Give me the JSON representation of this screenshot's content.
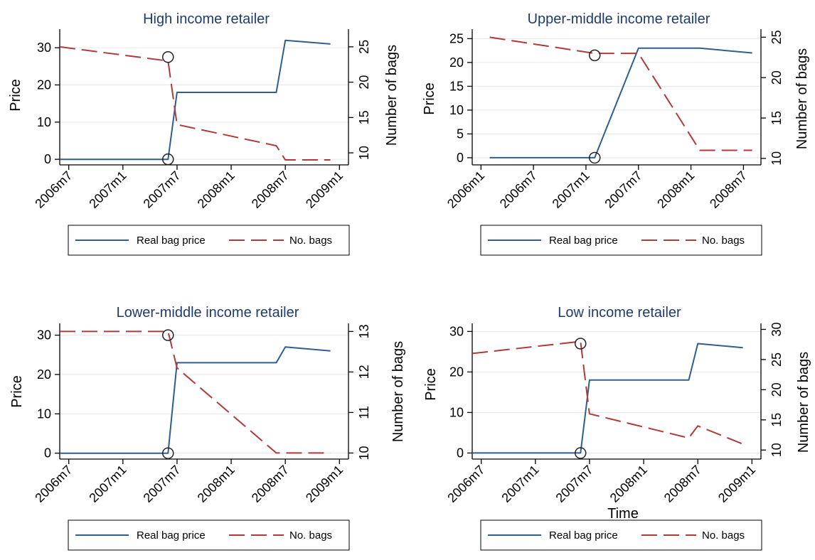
{
  "colors": {
    "price": "#2e5f8e",
    "bags": "#b03a3a",
    "title": "#1f3a6e",
    "grid": "#e6e6e6"
  },
  "chart_data": [
    {
      "type": "line",
      "title": "High income retailer",
      "ylabel": "Price",
      "y2label": "Number of bags",
      "xlabel": "",
      "x_tick_labels": [
        "2006m7",
        "2007m1",
        "2007m7",
        "2008m1",
        "2008m7",
        "2009m1"
      ],
      "x_tick_months": [
        0,
        6,
        12,
        18,
        24,
        30
      ],
      "xlim_months": [
        -1,
        31
      ],
      "ylim": [
        -1.5,
        35
      ],
      "y_ticks": [
        0,
        10,
        20,
        30
      ],
      "y2lim": [
        8.3,
        27.5
      ],
      "y2_ticks": [
        10,
        15,
        20,
        25
      ],
      "grid": true,
      "legend": [
        "Real bag price",
        "No. bags"
      ],
      "legend_position": "bottom",
      "series": [
        {
          "name": "Real bag price",
          "axis": "left",
          "style": "solid",
          "x": [
            "2006m6",
            "2007m6",
            "2007m7",
            "2008m6",
            "2008m7",
            "2008m12"
          ],
          "values": [
            0,
            0,
            18,
            18,
            32,
            31
          ]
        },
        {
          "name": "No. bags",
          "axis": "right",
          "style": "dashed",
          "x": [
            "2006m6",
            "2007m6",
            "2007m7",
            "2008m6",
            "2008m7",
            "2008m12"
          ],
          "values": [
            25,
            23,
            14,
            11,
            9,
            9
          ]
        }
      ],
      "markers": [
        {
          "x": "2007m6",
          "y": 27.5,
          "axis": "left"
        },
        {
          "x": "2007m6",
          "y": 0,
          "axis": "left"
        }
      ]
    },
    {
      "type": "line",
      "title": "Upper-middle income retailer",
      "ylabel": "Price",
      "y2label": "Number of bags",
      "xlabel": "",
      "x_tick_labels": [
        "2006m1",
        "2006m7",
        "2007m1",
        "2007m7",
        "2008m1",
        "2008m7"
      ],
      "x_tick_months": [
        -6,
        0,
        6,
        12,
        18,
        24
      ],
      "xlim_months": [
        -7,
        26
      ],
      "ylim": [
        -1.5,
        27
      ],
      "y_ticks": [
        0,
        5,
        10,
        15,
        20,
        25
      ],
      "y2lim": [
        9.2,
        26
      ],
      "y2_ticks": [
        10,
        15,
        20,
        25
      ],
      "grid": true,
      "legend": [
        "Real bag price",
        "No. bags"
      ],
      "legend_position": "bottom",
      "series": [
        {
          "name": "Real bag price",
          "axis": "left",
          "style": "solid",
          "x": [
            "2006m2",
            "2007m2",
            "2007m7",
            "2008m2",
            "2008m8"
          ],
          "values": [
            0,
            0,
            23,
            23,
            22
          ]
        },
        {
          "name": "No. bags",
          "axis": "right",
          "style": "dashed",
          "x": [
            "2006m2",
            "2007m2",
            "2007m7",
            "2008m2",
            "2008m8"
          ],
          "values": [
            25,
            23,
            23,
            11,
            11
          ]
        }
      ],
      "markers": [
        {
          "x": "2007m2",
          "y": 21.5,
          "axis": "left"
        },
        {
          "x": "2007m2",
          "y": 0,
          "axis": "left"
        }
      ]
    },
    {
      "type": "line",
      "title": "Lower-middle income retailer",
      "ylabel": "Price",
      "y2label": "Number of bags",
      "xlabel": "",
      "x_tick_labels": [
        "2006m7",
        "2007m1",
        "2007m7",
        "2008m1",
        "2008m7",
        "2009m1"
      ],
      "x_tick_months": [
        0,
        6,
        12,
        18,
        24,
        30
      ],
      "xlim_months": [
        -1,
        31
      ],
      "ylim": [
        -1.5,
        33
      ],
      "y_ticks": [
        0,
        10,
        20,
        30
      ],
      "y2lim": [
        9.85,
        13.2
      ],
      "y2_ticks": [
        10,
        11,
        12,
        13
      ],
      "grid": true,
      "legend": [
        "Real bag price",
        "No. bags"
      ],
      "legend_position": "bottom",
      "series": [
        {
          "name": "Real bag price",
          "axis": "left",
          "style": "solid",
          "x": [
            "2006m6",
            "2007m6",
            "2007m7",
            "2008m6",
            "2008m7",
            "2008m12"
          ],
          "values": [
            0,
            0,
            23,
            23,
            27,
            26
          ]
        },
        {
          "name": "No. bags",
          "axis": "right",
          "style": "dashed",
          "x": [
            "2006m6",
            "2007m6",
            "2007m7",
            "2008m6",
            "2008m12"
          ],
          "values": [
            13,
            13,
            12.1,
            10,
            10
          ]
        }
      ],
      "markers": [
        {
          "x": "2007m6",
          "y": 30,
          "axis": "left"
        },
        {
          "x": "2007m6",
          "y": 0,
          "axis": "left"
        }
      ]
    },
    {
      "type": "line",
      "title": "Low income retailer",
      "ylabel": "Price",
      "y2label": "Number of bags",
      "xlabel": "Time",
      "x_tick_labels": [
        "2006m7",
        "2007m1",
        "2007m7",
        "2008m1",
        "2008m7",
        "2009m1"
      ],
      "x_tick_months": [
        0,
        6,
        12,
        18,
        24,
        30
      ],
      "xlim_months": [
        -1,
        31
      ],
      "ylim": [
        -1.5,
        32
      ],
      "y_ticks": [
        0,
        10,
        20,
        30
      ],
      "y2lim": [
        8.5,
        31
      ],
      "y2_ticks": [
        10,
        15,
        20,
        25,
        30
      ],
      "grid": true,
      "legend": [
        "Real bag price",
        "No. bags"
      ],
      "legend_position": "bottom",
      "series": [
        {
          "name": "Real bag price",
          "axis": "left",
          "style": "solid",
          "x": [
            "2006m6",
            "2007m6",
            "2007m7",
            "2008m6",
            "2008m7",
            "2008m12"
          ],
          "values": [
            0,
            0,
            18,
            18,
            27,
            26
          ]
        },
        {
          "name": "No. bags",
          "axis": "right",
          "style": "dashed",
          "x": [
            "2006m6",
            "2007m6",
            "2007m7",
            "2008m6",
            "2008m7",
            "2008m12"
          ],
          "values": [
            26,
            28,
            16,
            12,
            14,
            11
          ]
        }
      ],
      "markers": [
        {
          "x": "2007m6",
          "y": 27,
          "axis": "left"
        },
        {
          "x": "2007m6",
          "y": 0,
          "axis": "left"
        }
      ]
    }
  ]
}
